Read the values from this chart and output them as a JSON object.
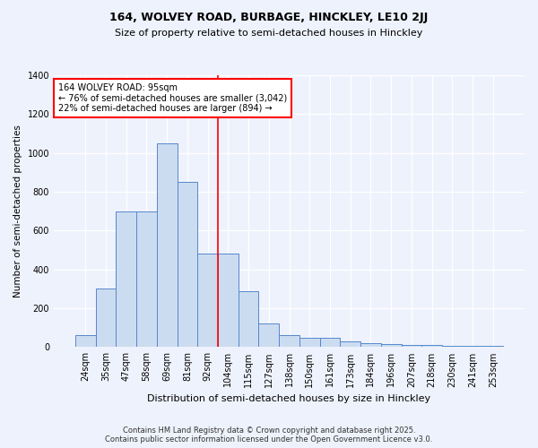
{
  "title1": "164, WOLVEY ROAD, BURBAGE, HINCKLEY, LE10 2JJ",
  "title2": "Size of property relative to semi-detached houses in Hinckley",
  "xlabel": "Distribution of semi-detached houses by size in Hinckley",
  "ylabel": "Number of semi-detached properties",
  "bin_labels": [
    "24sqm",
    "35sqm",
    "47sqm",
    "58sqm",
    "69sqm",
    "81sqm",
    "92sqm",
    "104sqm",
    "115sqm",
    "127sqm",
    "138sqm",
    "150sqm",
    "161sqm",
    "173sqm",
    "184sqm",
    "196sqm",
    "207sqm",
    "218sqm",
    "230sqm",
    "241sqm",
    "253sqm"
  ],
  "bar_heights": [
    60,
    300,
    700,
    700,
    1050,
    850,
    480,
    480,
    290,
    120,
    60,
    50,
    50,
    30,
    20,
    15,
    12,
    10,
    8,
    8,
    8
  ],
  "bar_color": "#ccdcf0",
  "bar_edge_color": "#5588cc",
  "vline_color": "red",
  "vline_index": 6.5,
  "annotation_title": "164 WOLVEY ROAD: 95sqm",
  "annotation_line1": "← 76% of semi-detached houses are smaller (3,042)",
  "annotation_line2": "22% of semi-detached houses are larger (894) →",
  "annotation_box_color": "white",
  "annotation_box_edge": "red",
  "ylim": [
    0,
    1400
  ],
  "yticks": [
    0,
    200,
    400,
    600,
    800,
    1000,
    1200,
    1400
  ],
  "footer1": "Contains HM Land Registry data © Crown copyright and database right 2025.",
  "footer2": "Contains public sector information licensed under the Open Government Licence v3.0.",
  "bg_color": "#eef2fc",
  "title1_fontsize": 9,
  "title2_fontsize": 8,
  "ylabel_fontsize": 7.5,
  "xlabel_fontsize": 8,
  "tick_fontsize": 7,
  "footer_fontsize": 6,
  "annot_fontsize": 7
}
